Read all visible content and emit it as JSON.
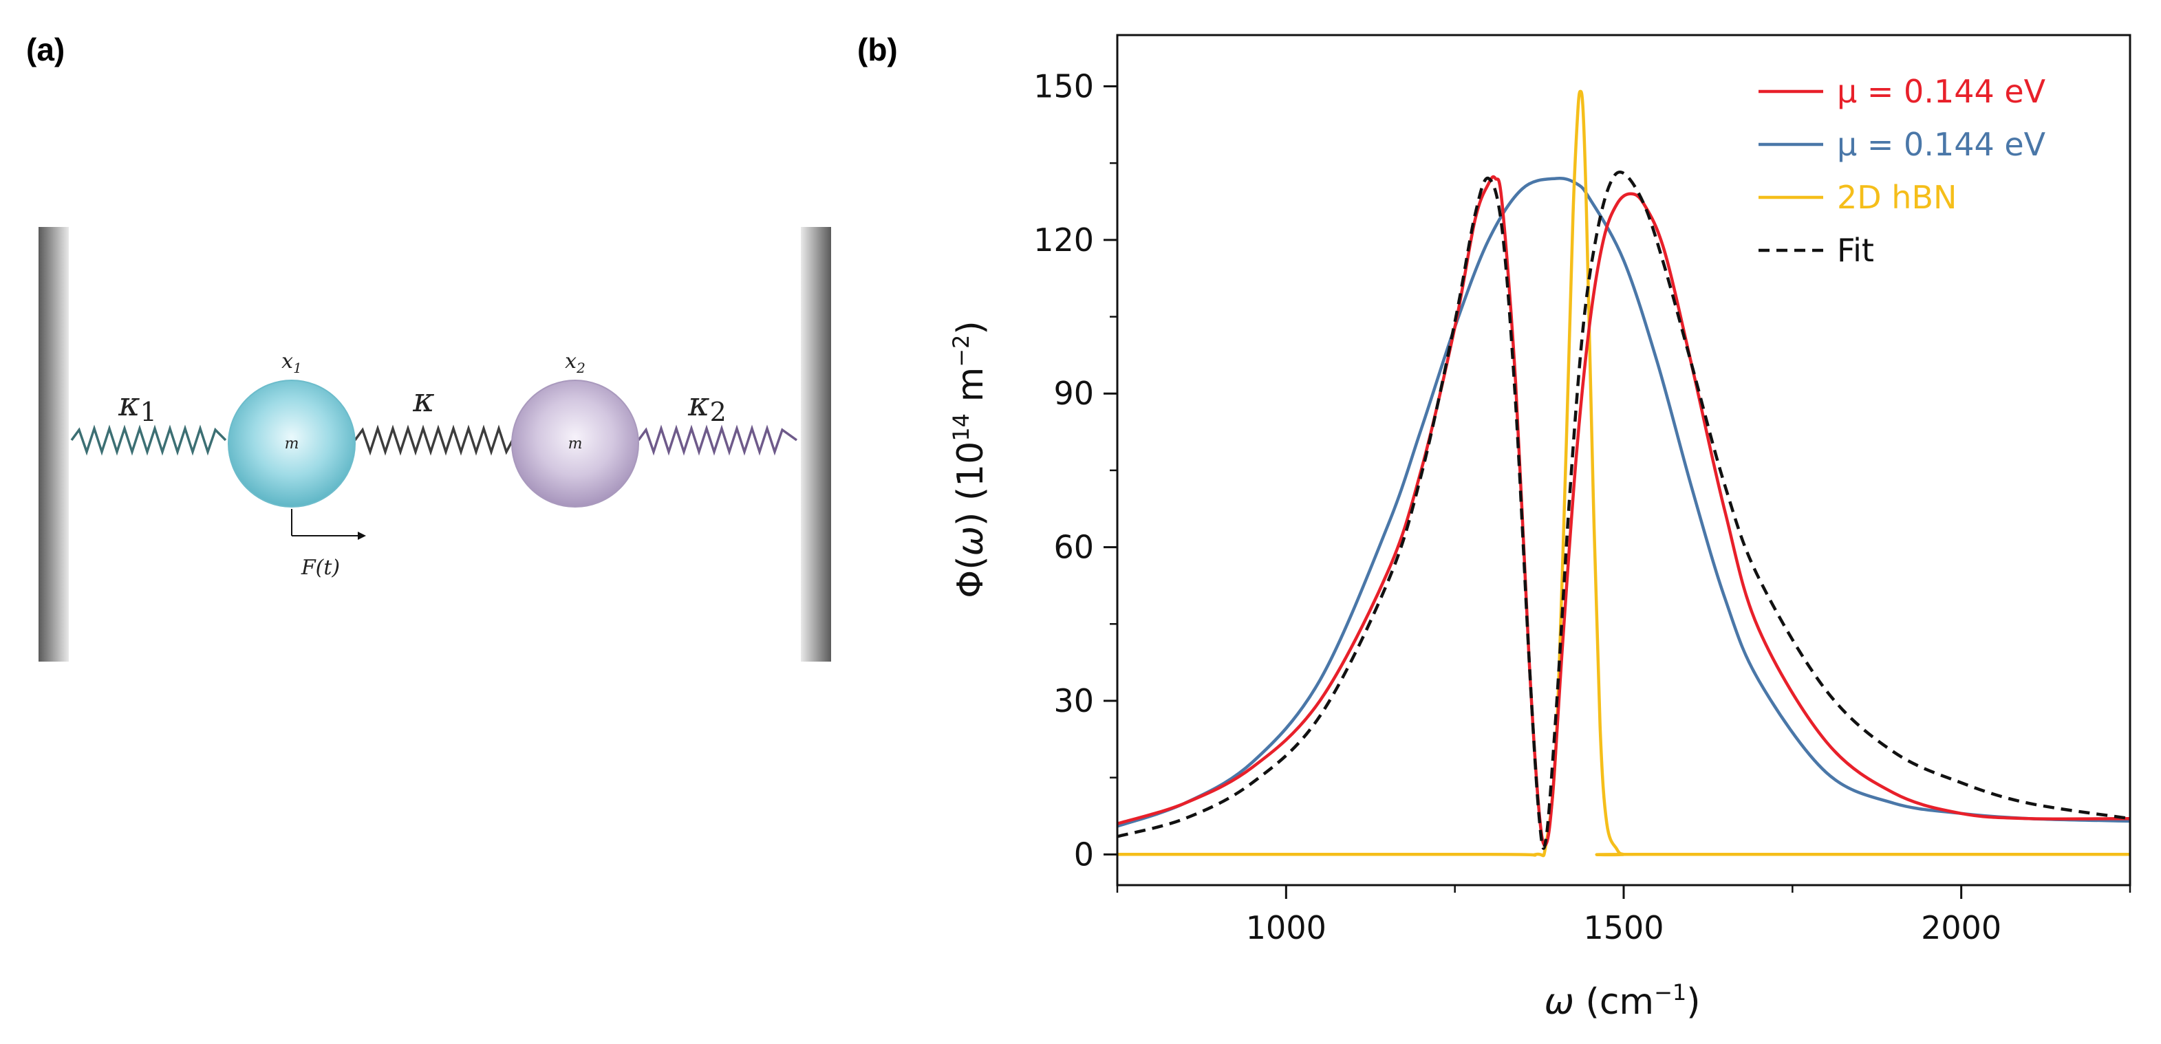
{
  "panel_a": {
    "label": "(a)",
    "spring_left_label": "κ1",
    "spring_mid_label": "κ",
    "spring_right_label": "κ2",
    "mass1_label": "m",
    "mass2_label": "m",
    "x1_label": "x1",
    "x2_label": "x2",
    "force_label": "F(t)"
  },
  "panel_b": {
    "label": "(b)"
  },
  "chart_data": {
    "type": "line",
    "xlabel": "ω (cm−1)",
    "ylabel": "Φ(ω) (1014 m−2)",
    "xlim": [
      750,
      2250
    ],
    "ylim": [
      -6,
      160
    ],
    "xticks": [
      1000,
      1500,
      2000
    ],
    "yticks": [
      0,
      30,
      60,
      90,
      120,
      150
    ],
    "legend_position": "top-right",
    "series": [
      {
        "name": "μ = 0.144 eV",
        "color": "#e8202a",
        "style": "solid",
        "x": [
          750,
          850,
          950,
          1050,
          1150,
          1200,
          1250,
          1280,
          1300,
          1310,
          1320,
          1340,
          1360,
          1375,
          1385,
          1395,
          1410,
          1430,
          1450,
          1470,
          1490,
          1510,
          1530,
          1560,
          1600,
          1650,
          1700,
          1800,
          1900,
          2000,
          2100,
          2250
        ],
        "y": [
          6,
          10,
          17,
          30,
          55,
          75,
          103,
          124,
          131,
          132,
          127,
          92,
          38,
          8,
          2,
          12,
          42,
          78,
          104,
          120,
          127,
          129,
          127,
          118,
          96,
          67,
          44,
          22,
          12,
          8,
          7,
          7
        ]
      },
      {
        "name": "μ = 0.144 eV",
        "color": "#4a77a8",
        "style": "solid",
        "x": [
          750,
          850,
          950,
          1050,
          1150,
          1200,
          1250,
          1300,
          1350,
          1400,
          1430,
          1450,
          1500,
          1550,
          1600,
          1650,
          1700,
          1800,
          1900,
          2000,
          2100,
          2250
        ],
        "y": [
          5.5,
          10,
          18,
          34,
          64,
          83,
          103,
          120,
          130,
          132,
          131,
          128,
          116,
          96,
          72,
          50,
          34,
          16,
          10,
          8,
          7,
          6.5
        ]
      },
      {
        "name": "2D hBN",
        "color": "#f5be1a",
        "style": "solid",
        "x": [
          750,
          1300,
          1370,
          1385,
          1400,
          1415,
          1425,
          1432,
          1436,
          1440,
          1445,
          1455,
          1465,
          1475,
          1490,
          1500,
          1520,
          2250
        ],
        "y": [
          0,
          0,
          0,
          2,
          22,
          80,
          125,
          145,
          149,
          145,
          125,
          70,
          25,
          6,
          1,
          0,
          0,
          0
        ]
      },
      {
        "name": "Fit",
        "color": "#111111",
        "style": "dashed",
        "x": [
          750,
          850,
          950,
          1050,
          1150,
          1200,
          1250,
          1280,
          1300,
          1320,
          1340,
          1360,
          1375,
          1385,
          1400,
          1420,
          1440,
          1460,
          1480,
          1500,
          1530,
          1560,
          1600,
          1650,
          1700,
          1800,
          1900,
          2000,
          2100,
          2250
        ],
        "y": [
          3.5,
          7,
          14,
          27,
          53,
          74,
          104,
          125,
          132,
          122,
          88,
          38,
          7,
          3,
          28,
          70,
          103,
          121,
          131,
          133,
          127,
          115,
          96,
          72,
          54,
          32,
          20,
          14,
          10,
          7
        ]
      }
    ]
  }
}
